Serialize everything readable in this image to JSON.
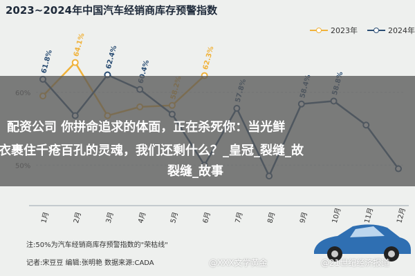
{
  "title": "2023~2024年中国汽车经销商库存预警指数",
  "chart_data": {
    "type": "line",
    "categories": [
      "1月",
      "2月",
      "3月",
      "4月",
      "5月",
      "6月",
      "7月",
      "8月",
      "9月",
      "10月",
      "11月",
      "12月"
    ],
    "y_ticks": [
      "60%",
      "50%"
    ],
    "ylim": [
      45,
      67
    ],
    "grid": true,
    "legend_placement": "top-right",
    "series": [
      {
        "name": "2023年",
        "color": "#f0b23a",
        "values": [
          59.5,
          64.1,
          56.8,
          58.0,
          58.2,
          62.3,
          null,
          null,
          null,
          null,
          null,
          null
        ],
        "labels": [
          "",
          "64.1%",
          "",
          "",
          "58.2%",
          "62.3%",
          "",
          "",
          "",
          "",
          "",
          ""
        ]
      },
      {
        "name": "2024年",
        "color": "#2a4d73",
        "values": [
          61.8,
          56.8,
          62.4,
          60.4,
          57.0,
          50.0,
          57.8,
          48.5,
          58.4,
          58.8,
          55.5,
          49.5
        ],
        "labels": [
          "61.8%",
          "",
          "62.4%",
          "60.4%",
          "",
          "",
          "57.8%",
          "",
          "58.4%",
          "58.8%",
          "",
          ""
        ]
      }
    ]
  },
  "banner": {
    "line1": "配资公司 你拼命追求的体面，正在杀死你：当光鲜",
    "line2": "衣裹住千疮百孔的灵魂，我们还剩什么？_皇冠_裂缝_故",
    "line3": "裂缝_故事"
  },
  "notes": {
    "line1": "注:50%为汽车经销商库存预警指数的\"荣枯线\"",
    "line2": "记者:宋豆豆   编辑:张明艳   数据来源:CADA"
  },
  "watermarks": {
    "left": "@XXX文学黄金",
    "right": "@21世纪经济报道"
  },
  "icons": {
    "car": "car-illustration"
  }
}
